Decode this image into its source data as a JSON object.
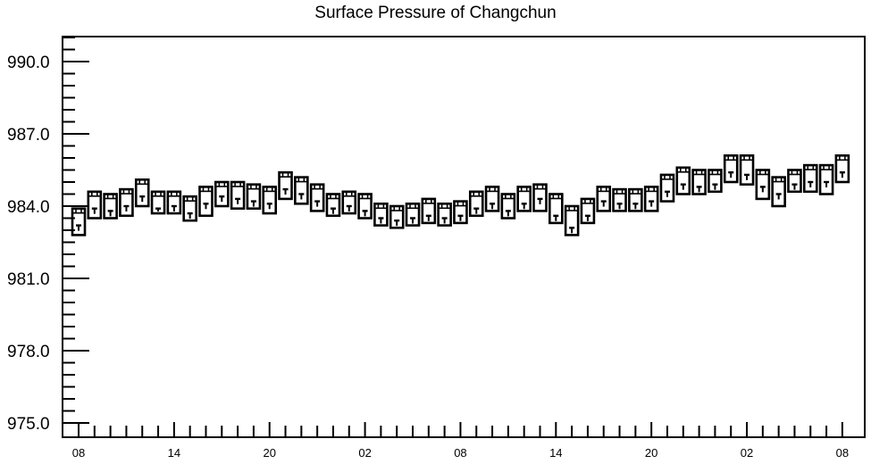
{
  "chart_data": {
    "type": "boxplot",
    "title": "Surface Pressure of Changchun",
    "xlabel": "",
    "ylabel": "",
    "ylim": [
      975.0,
      991.0
    ],
    "y_ticks": [
      "975.0",
      "978.0",
      "981.0",
      "984.0",
      "987.0",
      "990.0"
    ],
    "x_tick_labels": [
      "08",
      "14",
      "20",
      "02",
      "08",
      "14",
      "20",
      "02",
      "08"
    ],
    "grid": false,
    "series": [
      {
        "boxes": [
          {
            "x": 0,
            "box_low": 982.8,
            "box_high": 983.9,
            "median": 983.2
          },
          {
            "x": 1,
            "box_low": 983.5,
            "box_high": 984.6,
            "median": 983.9
          },
          {
            "x": 2,
            "box_low": 983.5,
            "box_high": 984.5,
            "median": 983.8
          },
          {
            "x": 3,
            "box_low": 983.6,
            "box_high": 984.7,
            "median": 984.0
          },
          {
            "x": 4,
            "box_low": 984.0,
            "box_high": 985.1,
            "median": 984.4
          },
          {
            "x": 5,
            "box_low": 983.7,
            "box_high": 984.6,
            "median": 983.9
          },
          {
            "x": 6,
            "box_low": 983.7,
            "box_high": 984.6,
            "median": 984.0
          },
          {
            "x": 7,
            "box_low": 983.4,
            "box_high": 984.4,
            "median": 983.7
          },
          {
            "x": 8,
            "box_low": 983.6,
            "box_high": 984.8,
            "median": 984.1
          },
          {
            "x": 9,
            "box_low": 984.0,
            "box_high": 985.0,
            "median": 984.4
          },
          {
            "x": 10,
            "box_low": 983.9,
            "box_high": 985.0,
            "median": 984.3
          },
          {
            "x": 11,
            "box_low": 983.9,
            "box_high": 984.9,
            "median": 984.2
          },
          {
            "x": 12,
            "box_low": 983.7,
            "box_high": 984.8,
            "median": 984.1
          },
          {
            "x": 13,
            "box_low": 984.3,
            "box_high": 985.4,
            "median": 984.7
          },
          {
            "x": 14,
            "box_low": 984.1,
            "box_high": 985.2,
            "median": 984.5
          },
          {
            "x": 15,
            "box_low": 983.8,
            "box_high": 984.9,
            "median": 984.2
          },
          {
            "x": 16,
            "box_low": 983.6,
            "box_high": 984.5,
            "median": 983.9
          },
          {
            "x": 17,
            "box_low": 983.7,
            "box_high": 984.6,
            "median": 984.0
          },
          {
            "x": 18,
            "box_low": 983.5,
            "box_high": 984.5,
            "median": 983.8
          },
          {
            "x": 19,
            "box_low": 983.2,
            "box_high": 984.1,
            "median": 983.5
          },
          {
            "x": 20,
            "box_low": 983.1,
            "box_high": 984.0,
            "median": 983.4
          },
          {
            "x": 21,
            "box_low": 983.2,
            "box_high": 984.1,
            "median": 983.5
          },
          {
            "x": 22,
            "box_low": 983.3,
            "box_high": 984.3,
            "median": 983.6
          },
          {
            "x": 23,
            "box_low": 983.2,
            "box_high": 984.1,
            "median": 983.5
          },
          {
            "x": 24,
            "box_low": 983.3,
            "box_high": 984.2,
            "median": 983.6
          },
          {
            "x": 25,
            "box_low": 983.6,
            "box_high": 984.6,
            "median": 983.9
          },
          {
            "x": 26,
            "box_low": 983.8,
            "box_high": 984.8,
            "median": 984.1
          },
          {
            "x": 27,
            "box_low": 983.5,
            "box_high": 984.5,
            "median": 983.8
          },
          {
            "x": 28,
            "box_low": 983.8,
            "box_high": 984.8,
            "median": 984.1
          },
          {
            "x": 29,
            "box_low": 983.8,
            "box_high": 984.9,
            "median": 984.3
          },
          {
            "x": 30,
            "box_low": 983.3,
            "box_high": 984.5,
            "median": 983.6
          },
          {
            "x": 31,
            "box_low": 982.8,
            "box_high": 984.0,
            "median": 983.1
          },
          {
            "x": 32,
            "box_low": 983.3,
            "box_high": 984.3,
            "median": 983.6
          },
          {
            "x": 33,
            "box_low": 983.8,
            "box_high": 984.8,
            "median": 984.2
          },
          {
            "x": 34,
            "box_low": 983.8,
            "box_high": 984.7,
            "median": 984.1
          },
          {
            "x": 35,
            "box_low": 983.8,
            "box_high": 984.7,
            "median": 984.1
          },
          {
            "x": 36,
            "box_low": 983.8,
            "box_high": 984.8,
            "median": 984.2
          },
          {
            "x": 37,
            "box_low": 984.2,
            "box_high": 985.3,
            "median": 984.6
          },
          {
            "x": 38,
            "box_low": 984.5,
            "box_high": 985.6,
            "median": 984.9
          },
          {
            "x": 39,
            "box_low": 984.5,
            "box_high": 985.5,
            "median": 984.8
          },
          {
            "x": 40,
            "box_low": 984.6,
            "box_high": 985.5,
            "median": 984.9
          },
          {
            "x": 41,
            "box_low": 985.0,
            "box_high": 986.1,
            "median": 985.4
          },
          {
            "x": 42,
            "box_low": 984.9,
            "box_high": 986.1,
            "median": 985.3
          },
          {
            "x": 43,
            "box_low": 984.3,
            "box_high": 985.5,
            "median": 984.8
          },
          {
            "x": 44,
            "box_low": 984.0,
            "box_high": 985.2,
            "median": 984.5
          },
          {
            "x": 45,
            "box_low": 984.6,
            "box_high": 985.5,
            "median": 984.9
          },
          {
            "x": 46,
            "box_low": 984.6,
            "box_high": 985.7,
            "median": 985.0
          },
          {
            "x": 47,
            "box_low": 984.5,
            "box_high": 985.7,
            "median": 985.0
          },
          {
            "x": 48,
            "box_low": 985.0,
            "box_high": 986.1,
            "median": 985.4
          }
        ]
      }
    ]
  }
}
